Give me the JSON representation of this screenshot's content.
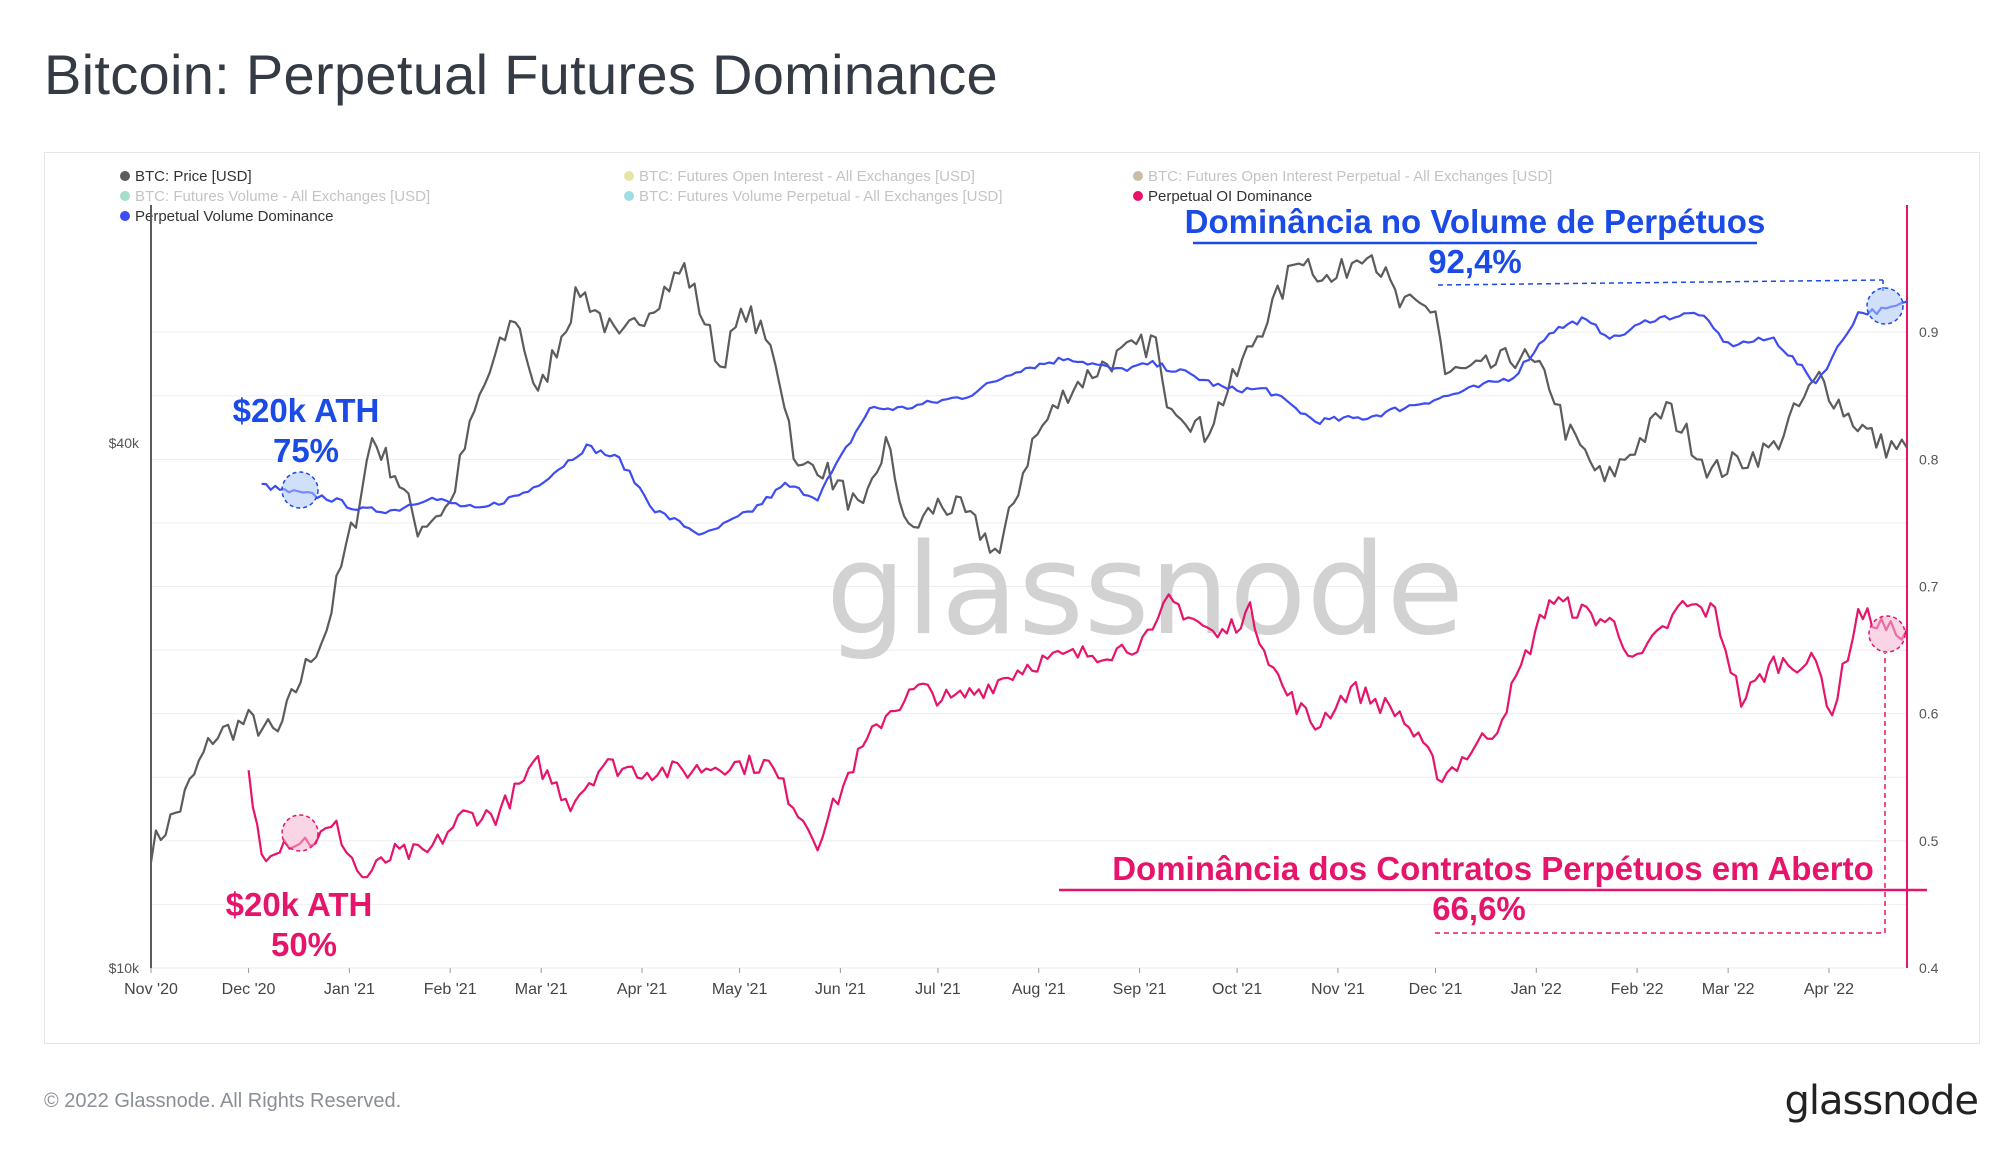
{
  "title": "Bitcoin: Perpetual Futures Dominance",
  "footer": {
    "copyright": "© 2022 Glassnode. All Rights Reserved.",
    "logo": "glassnode"
  },
  "watermark": "glassnode",
  "colors": {
    "price": "#5c5c5c",
    "volume_dom": "#3d4df2",
    "oi_dom": "#e6146a",
    "accent_blue": "#1a4be6",
    "accent_pink": "#e6146a"
  },
  "legend": [
    {
      "label": "BTC: Price [USD]",
      "color": "#5c5c5c",
      "active": true
    },
    {
      "label": "BTC: Futures Open Interest - All Exchanges [USD]",
      "color": "#c9c53a",
      "active": false
    },
    {
      "label": "BTC: Futures Open Interest Perpetual - All Exchanges [USD]",
      "color": "#8a6a3a",
      "active": false
    },
    {
      "label": "BTC: Futures Volume - All Exchanges [USD]",
      "color": "#37b58a",
      "active": false
    },
    {
      "label": "BTC: Futures Volume Perpetual - All Exchanges [USD]",
      "color": "#2bb3c4",
      "active": false
    },
    {
      "label": "Perpetual OI Dominance",
      "color": "#e6146a",
      "active": true
    },
    {
      "label": "Perpetual Volume Dominance",
      "color": "#3d4df2",
      "active": true
    }
  ],
  "annotations": {
    "vol_title": "Dominância no Volume de Perpétuos",
    "vol_value": "92,4%",
    "oi_title": "Dominância dos Contratos Perpétuos em Aberto",
    "oi_value": "66,6%",
    "ath_vol_title": "$20k ATH",
    "ath_vol_value": "75%",
    "ath_oi_title": "$20k ATH",
    "ath_oi_value": "50%"
  },
  "chart_data": {
    "type": "line",
    "x_tick_labels": [
      "Nov '20",
      "Dec '20",
      "Jan '21",
      "Feb '21",
      "Mar '21",
      "Apr '21",
      "May '21",
      "Jun '21",
      "Jul '21",
      "Aug '21",
      "Sep '21",
      "Oct '21",
      "Nov '21",
      "Dec '21",
      "Jan '22",
      "Feb '22",
      "Mar '22",
      "Apr '22"
    ],
    "x_range": [
      "2020-11-01",
      "2022-04-25"
    ],
    "left_axis": {
      "scale": "log",
      "ticks": [
        "$10k",
        "$40k"
      ],
      "range": [
        10000,
        75000
      ]
    },
    "right_axis": {
      "ticks": [
        "0.4",
        "0.5",
        "0.6",
        "0.7",
        "0.8",
        "0.9"
      ],
      "range": [
        0.4,
        1.0
      ]
    },
    "grid": true,
    "legend_position": "top-left",
    "series": [
      {
        "name": "BTC: Price [USD]",
        "axis": "left",
        "dates": [
          "2020-11-01",
          "2020-11-10",
          "2020-11-20",
          "2020-12-01",
          "2020-12-10",
          "2020-12-17",
          "2020-12-25",
          "2021-01-03",
          "2021-01-08",
          "2021-01-15",
          "2021-01-22",
          "2021-02-01",
          "2021-02-10",
          "2021-02-21",
          "2021-02-28",
          "2021-03-13",
          "2021-03-25",
          "2021-04-14",
          "2021-04-25",
          "2021-05-03",
          "2021-05-12",
          "2021-05-19",
          "2021-05-25",
          "2021-06-08",
          "2021-06-15",
          "2021-06-22",
          "2021-07-01",
          "2021-07-08",
          "2021-07-20",
          "2021-07-30",
          "2021-08-10",
          "2021-08-22",
          "2021-09-06",
          "2021-09-08",
          "2021-09-21",
          "2021-10-01",
          "2021-10-15",
          "2021-10-20",
          "2021-10-30",
          "2021-11-10",
          "2021-11-20",
          "2021-12-01",
          "2021-12-04",
          "2021-12-15",
          "2021-12-27",
          "2022-01-05",
          "2022-01-10",
          "2022-01-22",
          "2022-02-05",
          "2022-02-10",
          "2022-02-24",
          "2022-03-07",
          "2022-03-15",
          "2022-03-29",
          "2022-04-07",
          "2022-04-17",
          "2022-04-25"
        ],
        "values": [
          13700,
          15300,
          18400,
          19200,
          18500,
          21500,
          24500,
          33000,
          40500,
          37000,
          32000,
          34000,
          45000,
          56000,
          45000,
          60000,
          52000,
          63500,
          49000,
          57000,
          50000,
          37000,
          38000,
          33000,
          40000,
          31500,
          34000,
          33500,
          29800,
          40000,
          46000,
          49500,
          52500,
          46000,
          41000,
          48000,
          60000,
          66000,
          61000,
          67500,
          57500,
          57000,
          48000,
          48500,
          50500,
          47000,
          41500,
          36000,
          41500,
          44000,
          37000,
          38500,
          39500,
          47500,
          43000,
          39800,
          39500
        ]
      },
      {
        "name": "Perpetual Volume Dominance",
        "axis": "right",
        "dates": [
          "2020-12-05",
          "2020-12-12",
          "2020-12-25",
          "2021-01-05",
          "2021-01-15",
          "2021-01-25",
          "2021-02-10",
          "2021-02-25",
          "2021-03-05",
          "2021-03-15",
          "2021-03-25",
          "2021-04-05",
          "2021-04-20",
          "2021-05-05",
          "2021-05-15",
          "2021-05-25",
          "2021-06-10",
          "2021-06-20",
          "2021-07-10",
          "2021-07-25",
          "2021-08-10",
          "2021-08-25",
          "2021-09-05",
          "2021-09-15",
          "2021-09-28",
          "2021-10-10",
          "2021-10-25",
          "2021-11-10",
          "2021-11-20",
          "2021-12-05",
          "2021-12-25",
          "2022-01-05",
          "2022-01-15",
          "2022-01-25",
          "2022-02-05",
          "2022-02-20",
          "2022-03-01",
          "2022-03-15",
          "2022-03-28",
          "2022-04-02",
          "2022-04-10",
          "2022-04-20",
          "2022-04-25"
        ],
        "values": [
          0.78,
          0.775,
          0.77,
          0.76,
          0.76,
          0.77,
          0.76,
          0.775,
          0.79,
          0.81,
          0.8,
          0.76,
          0.74,
          0.76,
          0.78,
          0.77,
          0.84,
          0.84,
          0.85,
          0.87,
          0.88,
          0.87,
          0.875,
          0.868,
          0.855,
          0.855,
          0.83,
          0.833,
          0.84,
          0.85,
          0.865,
          0.9,
          0.91,
          0.895,
          0.91,
          0.915,
          0.89,
          0.895,
          0.86,
          0.88,
          0.915,
          0.918,
          0.924
        ]
      },
      {
        "name": "Perpetual OI Dominance",
        "axis": "right",
        "dates": [
          "2020-12-01",
          "2020-12-05",
          "2020-12-12",
          "2020-12-20",
          "2020-12-28",
          "2021-01-05",
          "2021-01-15",
          "2021-01-25",
          "2021-02-05",
          "2021-02-15",
          "2021-02-28",
          "2021-03-10",
          "2021-03-20",
          "2021-04-01",
          "2021-04-15",
          "2021-04-25",
          "2021-05-10",
          "2021-05-25",
          "2021-06-05",
          "2021-06-15",
          "2021-06-25",
          "2021-07-05",
          "2021-07-15",
          "2021-07-30",
          "2021-08-10",
          "2021-08-25",
          "2021-09-05",
          "2021-09-10",
          "2021-09-25",
          "2021-10-05",
          "2021-10-15",
          "2021-10-25",
          "2021-11-05",
          "2021-11-20",
          "2021-12-03",
          "2021-12-20",
          "2022-01-05",
          "2022-01-15",
          "2022-01-25",
          "2022-02-01",
          "2022-02-15",
          "2022-02-25",
          "2022-03-05",
          "2022-03-15",
          "2022-03-28",
          "2022-04-02",
          "2022-04-10",
          "2022-04-20",
          "2022-04-25"
        ],
        "values": [
          0.55,
          0.49,
          0.5,
          0.5,
          0.51,
          0.47,
          0.49,
          0.49,
          0.52,
          0.52,
          0.56,
          0.53,
          0.56,
          0.555,
          0.555,
          0.56,
          0.56,
          0.5,
          0.56,
          0.6,
          0.62,
          0.61,
          0.62,
          0.64,
          0.645,
          0.65,
          0.66,
          0.69,
          0.66,
          0.68,
          0.62,
          0.59,
          0.62,
          0.6,
          0.55,
          0.59,
          0.69,
          0.68,
          0.67,
          0.64,
          0.685,
          0.68,
          0.61,
          0.64,
          0.64,
          0.6,
          0.68,
          0.665,
          0.666
        ]
      }
    ]
  }
}
